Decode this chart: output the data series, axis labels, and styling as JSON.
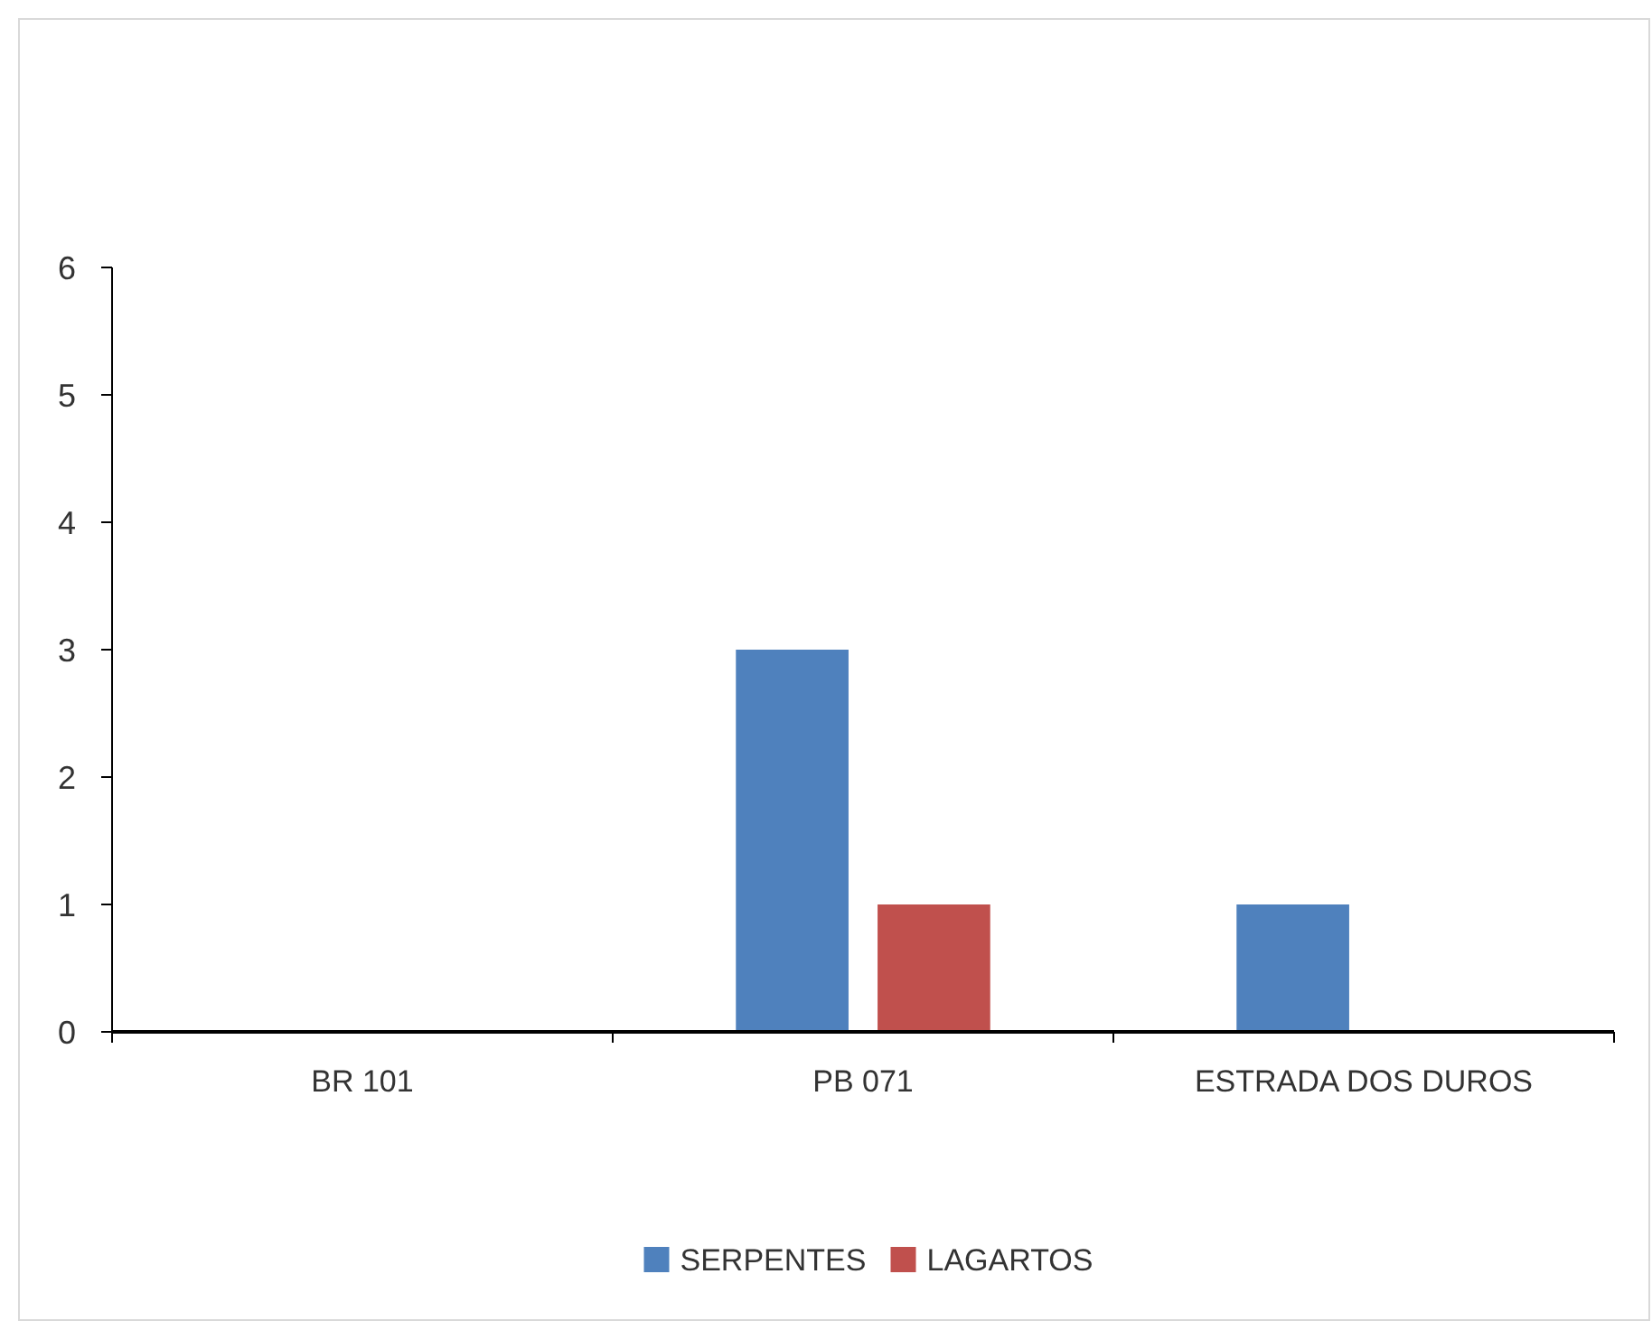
{
  "chart_data": {
    "type": "bar",
    "categories": [
      "BR 101",
      "PB 071",
      "ESTRADA DOS DUROS"
    ],
    "series": [
      {
        "name": "SERPENTES",
        "color": "#4f81bd",
        "values": [
          0,
          3,
          1
        ]
      },
      {
        "name": "LAGARTOS",
        "color": "#c0504d",
        "values": [
          0,
          1,
          0
        ]
      }
    ],
    "ylim": [
      0,
      6
    ],
    "yticks": [
      0,
      1,
      2,
      3,
      4,
      5,
      6
    ],
    "grid": false,
    "legend": "bottom"
  }
}
